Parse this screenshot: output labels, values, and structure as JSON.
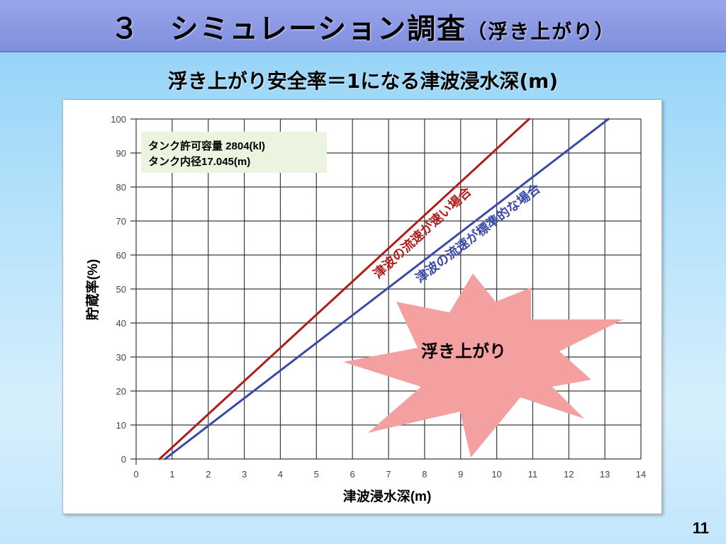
{
  "slide": {
    "title_main": "３　シミュレーション調査",
    "title_paren": "（浮き上がり）",
    "subtitle": "浮き上がり安全率＝1になる津波浸水深(m)",
    "page_number": "11"
  },
  "chart_data": {
    "type": "line",
    "title": "",
    "xlabel": "津波浸水深(m)",
    "ylabel": "貯蔵率(%)",
    "xlim": [
      0,
      14
    ],
    "ylim": [
      0,
      100
    ],
    "xticks": [
      0,
      1,
      2,
      3,
      4,
      5,
      6,
      7,
      8,
      9,
      10,
      11,
      12,
      13,
      14
    ],
    "yticks": [
      0,
      10,
      20,
      30,
      40,
      50,
      60,
      70,
      80,
      90,
      100
    ],
    "grid": true,
    "info_box": [
      "タンク許可容量 2804(kl)",
      "タンク内径17.045(m)"
    ],
    "series": [
      {
        "name": "津波の流速が速い場合",
        "color": "#b01c1c",
        "points": [
          [
            0.65,
            0
          ],
          [
            10.9,
            100
          ]
        ]
      },
      {
        "name": "津波の流速が標準的な場合",
        "color": "#3a4aa8",
        "points": [
          [
            0.8,
            0
          ],
          [
            13.1,
            100
          ]
        ]
      }
    ],
    "annotation": "浮き上がり",
    "annotation_color": "#f4a0a0"
  }
}
